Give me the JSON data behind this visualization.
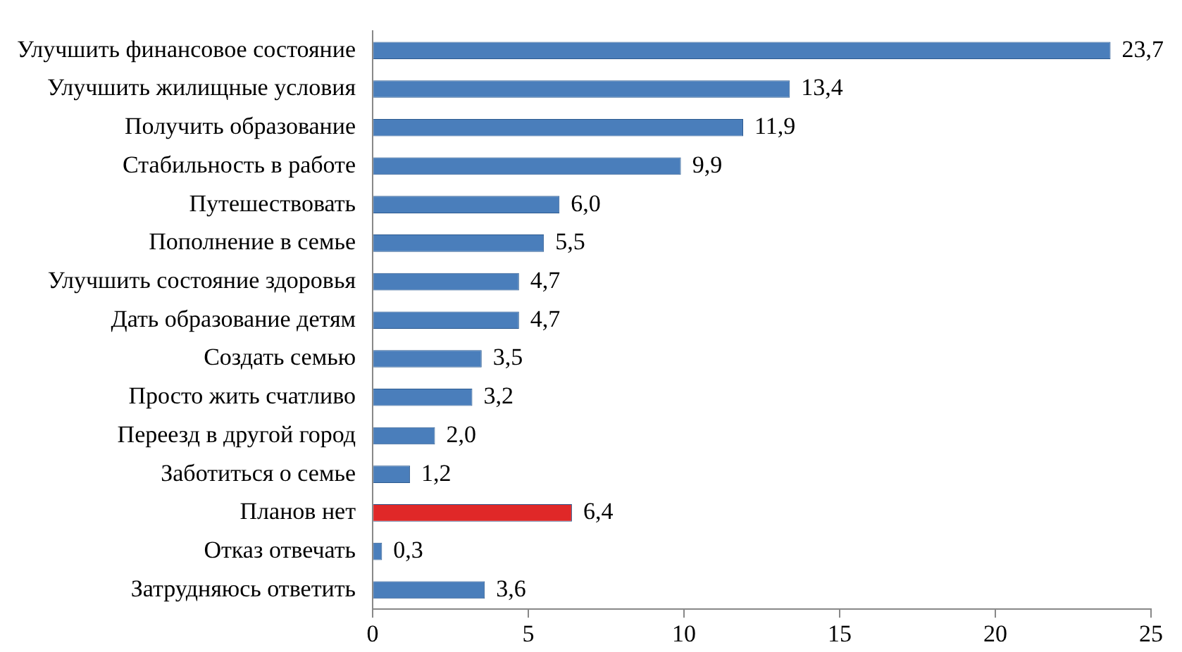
{
  "chart_data": {
    "type": "bar",
    "orientation": "horizontal",
    "categories": [
      "Улучшить финансовое состояние",
      "Улучшить жилищные условия",
      "Получить образование",
      "Стабильность в работе",
      "Путешествовать",
      "Пополнение в семье",
      "Улучшить состояние здоровья",
      "Дать образование детям",
      "Создать семью",
      "Просто жить счатливо",
      "Переезд в другой город",
      "Заботиться о семье",
      "Планов нет",
      "Отказ отвечать",
      "Затрудняюсь ответить"
    ],
    "values": [
      23.7,
      13.4,
      11.9,
      9.9,
      6.0,
      5.5,
      4.7,
      4.7,
      3.5,
      3.2,
      2.0,
      1.2,
      6.4,
      0.3,
      3.6
    ],
    "value_labels": [
      "23,7",
      "13,4",
      "11,9",
      "9,9",
      "6,0",
      "5,5",
      "4,7",
      "4,7",
      "3,5",
      "3,2",
      "2,0",
      "1,2",
      "6,4",
      "0,3",
      "3,6"
    ],
    "colors": [
      "#4a7ebb",
      "#4a7ebb",
      "#4a7ebb",
      "#4a7ebb",
      "#4a7ebb",
      "#4a7ebb",
      "#4a7ebb",
      "#4a7ebb",
      "#4a7ebb",
      "#4a7ebb",
      "#4a7ebb",
      "#4a7ebb",
      "#e02828",
      "#4a7ebb",
      "#4a7ebb"
    ],
    "xlim": [
      0,
      25
    ],
    "xticks": [
      0,
      5,
      10,
      15,
      20,
      25
    ],
    "grid": false,
    "legend": false
  }
}
